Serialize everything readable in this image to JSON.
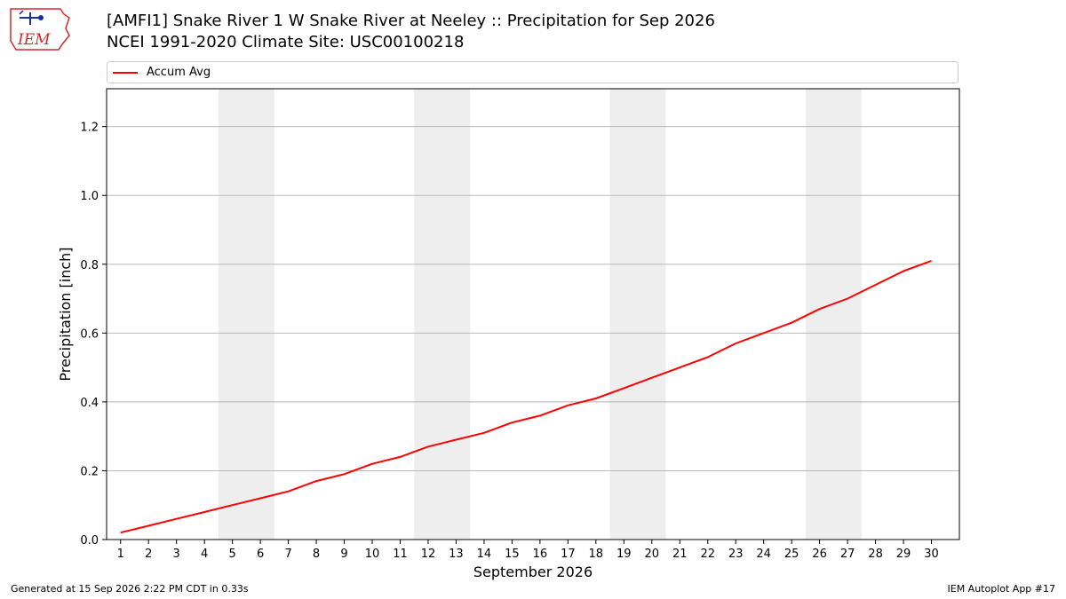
{
  "header": {
    "title_line1": "[AMFI1] Snake River 1 W Snake River at Neeley :: Precipitation for Sep 2026",
    "title_line2": "NCEI 1991-2020 Climate Site: USC00100218"
  },
  "logo": {
    "text": "IEM",
    "color": "#d42a2a",
    "accent": "#1a2ea8"
  },
  "footer": {
    "left": "Generated at 15 Sep 2026 2:22 PM CDT in 0.33s",
    "right": "IEM Autoplot App #17"
  },
  "chart_data": {
    "type": "line",
    "xlabel": "September 2026",
    "ylabel": "Precipitation [inch]",
    "xlim": [
      0.5,
      31
    ],
    "ylim": [
      0,
      1.31
    ],
    "yticks": [
      0.0,
      0.2,
      0.4,
      0.6,
      0.8,
      1.0,
      1.2
    ],
    "ytick_labels": [
      "0.0",
      "0.2",
      "0.4",
      "0.6",
      "0.8",
      "1.0",
      "1.2"
    ],
    "grid": "horizontal",
    "legend_position": "top",
    "weekend_shading": [
      [
        4.5,
        6.5
      ],
      [
        11.5,
        13.5
      ],
      [
        18.5,
        20.5
      ],
      [
        25.5,
        27.5
      ]
    ],
    "shade_color": "#eeeeee",
    "x": [
      1,
      2,
      3,
      4,
      5,
      6,
      7,
      8,
      9,
      10,
      11,
      12,
      13,
      14,
      15,
      16,
      17,
      18,
      19,
      20,
      21,
      22,
      23,
      24,
      25,
      26,
      27,
      28,
      29,
      30
    ],
    "series": [
      {
        "name": "Accum Avg",
        "color": "#ff0000",
        "values": [
          0.02,
          0.04,
          0.06,
          0.08,
          0.1,
          0.12,
          0.14,
          0.17,
          0.19,
          0.22,
          0.24,
          0.27,
          0.29,
          0.31,
          0.34,
          0.36,
          0.39,
          0.41,
          0.44,
          0.47,
          0.5,
          0.53,
          0.57,
          0.6,
          0.63,
          0.67,
          0.7,
          0.74,
          0.78,
          0.81
        ]
      }
    ]
  }
}
